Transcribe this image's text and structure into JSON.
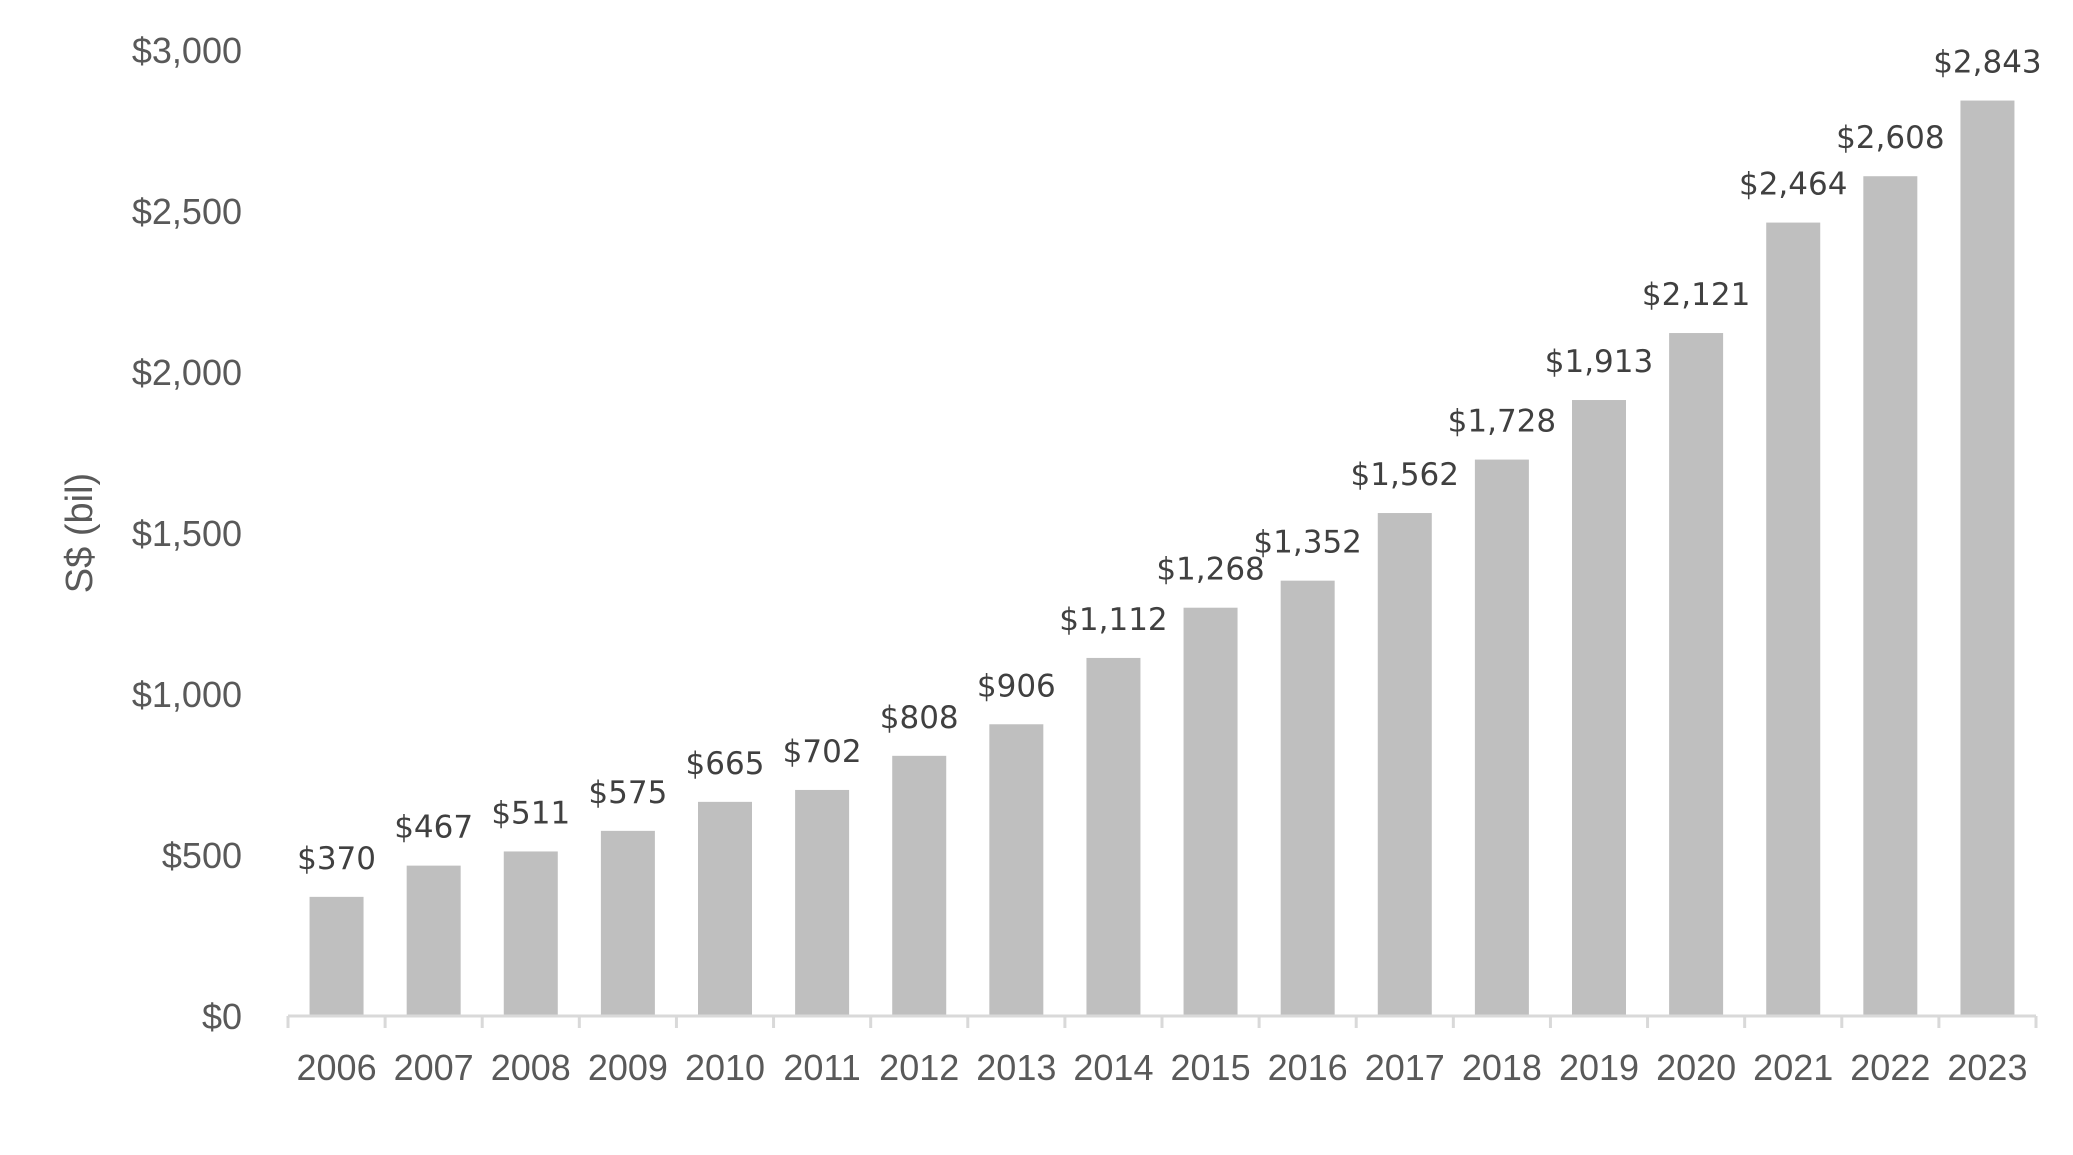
{
  "chart_data": {
    "type": "bar",
    "ylabel": "S$ (bil)",
    "xlabel": "",
    "title": "",
    "categories": [
      "2006",
      "2007",
      "2008",
      "2009",
      "2010",
      "2011",
      "2012",
      "2013",
      "2014",
      "2015",
      "2016",
      "2017",
      "2018",
      "2019",
      "2020",
      "2021",
      "2022",
      "2023"
    ],
    "values": [
      370,
      467,
      511,
      575,
      665,
      702,
      808,
      906,
      1112,
      1268,
      1352,
      1562,
      1728,
      1913,
      2121,
      2464,
      2608,
      2843
    ],
    "data_labels": [
      "$370",
      "$467",
      "$511",
      "$575",
      "$665",
      "$702",
      "$808",
      "$906",
      "$1,112",
      "$1,268",
      "$1,352",
      "$1,562",
      "$1,728",
      "$1,913",
      "$2,121",
      "$2,464",
      "$2,608",
      "$2,843"
    ],
    "ylim": [
      0,
      3000
    ],
    "yticks": [
      0,
      500,
      1000,
      1500,
      2000,
      2500,
      3000
    ],
    "ytick_labels": [
      "$0",
      "$500",
      "$1,000",
      "$1,500",
      "$2,000",
      "$2,500",
      "$3,000"
    ],
    "grid": false,
    "legend": "none",
    "colors": {
      "bar": "#bfbfbf",
      "axis": "#d9d9d9",
      "tick_text": "#595959",
      "label_text": "#404040"
    }
  }
}
